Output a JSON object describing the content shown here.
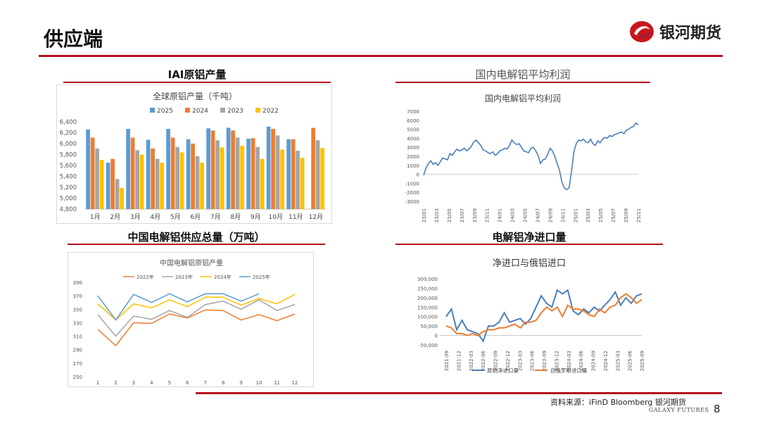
{
  "header": {
    "title": "供应端",
    "brand": "银河期货"
  },
  "sections": {
    "iai": "IAI原铝产量",
    "profit": "国内电解铝平均利润",
    "china_supply": "中国电解铝供应总量（万吨）",
    "net_import": "电解铝净进口量"
  },
  "colors": {
    "accent": "#b3121d",
    "blue": "#5b9bd5",
    "orange": "#ed7d31",
    "gray": "#a5a5a5",
    "yellow": "#ffc000",
    "line_blue": "#4a7ebb"
  },
  "chart_data": [
    {
      "id": "global_aluminium",
      "type": "bar",
      "title": "全球原铝产量（千吨）",
      "categories": [
        "1月",
        "2月",
        "3月",
        "4月",
        "5月",
        "6月",
        "7月",
        "8月",
        "9月",
        "10月",
        "11月",
        "12月"
      ],
      "series": [
        {
          "name": "2025",
          "values": [
            6260,
            5650,
            6270,
            6070,
            6270,
            6080,
            6280,
            6290,
            6090,
            6310,
            6080,
            null
          ]
        },
        {
          "name": "2024",
          "values": [
            6110,
            5720,
            6110,
            5910,
            6110,
            6000,
            6240,
            6240,
            6100,
            6270,
            6080,
            6290
          ]
        },
        {
          "name": "2023",
          "values": [
            5910,
            5350,
            5880,
            5720,
            5940,
            5770,
            6060,
            6110,
            5940,
            6150,
            5870,
            6060
          ]
        },
        {
          "name": "2022",
          "values": [
            5700,
            5190,
            5800,
            5650,
            5840,
            5650,
            5930,
            5960,
            5720,
            5890,
            5740,
            5920
          ]
        }
      ],
      "ylim": [
        4800,
        6400
      ],
      "yticks": [
        "4,800",
        "5,000",
        "5,200",
        "5,400",
        "5,600",
        "5,800",
        "6,000",
        "6,200",
        "6,400"
      ]
    },
    {
      "id": "domestic_profit",
      "type": "line",
      "title": "国内电解铝平均利润",
      "yticks": [
        "7000",
        "6000",
        "5000",
        "4000",
        "3000",
        "2000",
        "1000",
        "0",
        "-1000",
        "-2000",
        "-3000"
      ],
      "ylim": [
        -3000,
        7000
      ],
      "xticks": [
        "23/01",
        "23/03",
        "23/05",
        "23/07",
        "23/09",
        "23/11",
        "24/01",
        "24/03",
        "24/05",
        "24/07",
        "24/09",
        "24/11",
        "25/01",
        "25/03",
        "25/05",
        "25/07",
        "25/09",
        "25/11"
      ],
      "values": [
        -100,
        700,
        1200,
        1500,
        1100,
        1300,
        1000,
        1400,
        1800,
        1700,
        1600,
        2300,
        2100,
        2500,
        2800,
        2600,
        2700,
        2900,
        2600,
        2800,
        3100,
        3600,
        3800,
        3500,
        3200,
        2700,
        2600,
        2400,
        2300,
        2500,
        2100,
        2300,
        2600,
        2700,
        2900,
        2800,
        3200,
        3800,
        3500,
        3300,
        3400,
        3000,
        2600,
        2500,
        2400,
        2900,
        3000,
        2600,
        2100,
        1200,
        1600,
        1700,
        2200,
        2900,
        2600,
        2000,
        1200,
        400,
        -900,
        -1500,
        -1700,
        -1500,
        300,
        2500,
        3400,
        3800,
        3700,
        3900,
        3600,
        3500,
        3900,
        3400,
        3200,
        3700,
        3500,
        3900,
        4100,
        4000,
        4300,
        4200,
        4400,
        4500,
        4600,
        4700,
        4500,
        4900,
        5000,
        5200,
        5300,
        5700,
        5500
      ]
    },
    {
      "id": "china_supply",
      "type": "line",
      "title": "中国电解铝原铝产量",
      "categories": [
        "1",
        "2",
        "3",
        "4",
        "5",
        "6",
        "7",
        "8",
        "9",
        "10",
        "11",
        "12"
      ],
      "series": [
        {
          "name": "2022年",
          "values": [
            320,
            296,
            330,
            329,
            343,
            337,
            349,
            348,
            334,
            342,
            333,
            343
          ]
        },
        {
          "name": "2023年",
          "values": [
            342,
            310,
            340,
            335,
            348,
            338,
            357,
            362,
            350,
            364,
            348,
            357
          ]
        },
        {
          "name": "2024年",
          "values": [
            358,
            334,
            358,
            352,
            364,
            354,
            368,
            368,
            356,
            366,
            358,
            372
          ]
        },
        {
          "name": "2025年",
          "values": [
            370,
            334,
            372,
            360,
            373,
            361,
            373,
            373,
            362,
            373,
            null,
            null
          ]
        }
      ],
      "ylim": [
        250,
        390
      ],
      "yticks": [
        "390",
        "370",
        "350",
        "330",
        "310",
        "290",
        "270",
        "250"
      ]
    },
    {
      "id": "net_import",
      "type": "line",
      "title": "净进口与俄铝进口",
      "yticks": [
        "300,000",
        "250,000",
        "200,000",
        "150,000",
        "100,000",
        "50,000",
        "0",
        "-50,000"
      ],
      "ylim": [
        -50000,
        300000
      ],
      "xticks": [
        "2021-09",
        "2021-12",
        "2022-03",
        "2022-06",
        "2022-09",
        "2022-12",
        "2023-03",
        "2023-06",
        "2023-09",
        "2023-12",
        "2024-03",
        "2024-06",
        "2024-09",
        "2024-12",
        "2025-03",
        "2025-06",
        "2025-09"
      ],
      "series": [
        {
          "name": "原铝净进口量",
          "values": [
            100000,
            140000,
            30000,
            80000,
            30000,
            20000,
            10000,
            -30000,
            50000,
            50000,
            70000,
            120000,
            70000,
            80000,
            90000,
            60000,
            90000,
            150000,
            210000,
            170000,
            150000,
            240000,
            220000,
            240000,
            130000,
            110000,
            140000,
            120000,
            150000,
            130000,
            160000,
            190000,
            230000,
            160000,
            200000,
            170000,
            210000,
            220000
          ]
        },
        {
          "name": "自俄罗斯进口量",
          "values": [
            50000,
            40000,
            10000,
            10000,
            0,
            10000,
            0,
            20000,
            30000,
            30000,
            40000,
            40000,
            50000,
            60000,
            40000,
            70000,
            70000,
            80000,
            120000,
            150000,
            130000,
            150000,
            100000,
            160000,
            140000,
            140000,
            130000,
            110000,
            100000,
            140000,
            120000,
            150000,
            160000,
            200000,
            220000,
            200000,
            170000,
            190000
          ]
        }
      ]
    }
  ],
  "footer": {
    "source": "资料来源：iFinD   Bloomberg  银河期货",
    "logo": "GALAXY FUTURES",
    "page": "8"
  }
}
